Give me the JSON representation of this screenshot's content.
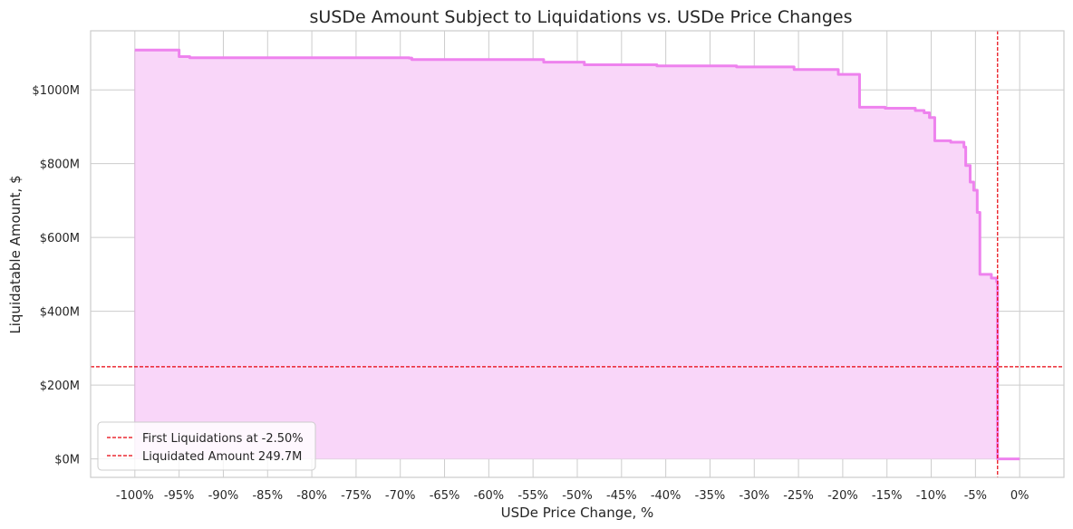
{
  "chart_data": {
    "type": "area",
    "title": "sUSDe Amount Subject to Liquidations vs. USDe Price Changes",
    "xlabel": "USDe Price Change, %",
    "ylabel": "Liquidatable Amount, $",
    "xlim": [
      -105,
      5
    ],
    "ylim": [
      -50,
      1160
    ],
    "x_ticks": [
      -100,
      -95,
      -90,
      -85,
      -80,
      -75,
      -70,
      -65,
      -60,
      -55,
      -50,
      -45,
      -40,
      -35,
      -30,
      -25,
      -20,
      -15,
      -10,
      -5,
      0
    ],
    "x_tick_labels": [
      "-100%",
      "-95%",
      "-90%",
      "-85%",
      "-80%",
      "-75%",
      "-70%",
      "-65%",
      "-60%",
      "-55%",
      "-50%",
      "-45%",
      "-40%",
      "-35%",
      "-30%",
      "-25%",
      "-20%",
      "-15%",
      "-10%",
      "-5%",
      "0%"
    ],
    "y_ticks": [
      0,
      200,
      400,
      600,
      800,
      1000
    ],
    "y_tick_labels": [
      "$0M",
      "$200M",
      "$400M",
      "$600M",
      "$800M",
      "$1000M"
    ],
    "grid": true,
    "legend_placement": "lower-left",
    "series": [
      {
        "color": "#ee82ee",
        "fill_color": "#f9d6f9",
        "x": [
          -100,
          -95,
          -95,
          -93.8,
          -93.8,
          -69,
          -69,
          -68.7,
          -68.7,
          -53.8,
          -53.8,
          -49.2,
          -49.2,
          -41,
          -41,
          -32,
          -32,
          -25.5,
          -25.5,
          -20.5,
          -20.5,
          -18.1,
          -18.1,
          -15.2,
          -15.2,
          -11.8,
          -11.8,
          -10.8,
          -10.8,
          -10.2,
          -10.2,
          -9.6,
          -9.6,
          -7.8,
          -7.8,
          -6.3,
          -6.3,
          -6.1,
          -6.1,
          -5.6,
          -5.6,
          -5.2,
          -5.2,
          -4.8,
          -4.8,
          -4.5,
          -4.5,
          -3.2,
          -3.2,
          -2.6,
          -2.6,
          -2.5,
          -2.5,
          0
        ],
        "y": [
          1108,
          1108,
          1090,
          1090,
          1087,
          1087,
          1086,
          1086,
          1082,
          1082,
          1075,
          1075,
          1068,
          1068,
          1065,
          1065,
          1062,
          1062,
          1055,
          1055,
          1042,
          1042,
          953,
          953,
          950,
          950,
          944,
          944,
          938,
          938,
          925,
          925,
          862,
          862,
          858,
          858,
          845,
          845,
          795,
          795,
          750,
          750,
          728,
          728,
          668,
          668,
          500,
          500,
          490,
          490,
          480,
          480,
          0,
          0
        ]
      }
    ],
    "reference_lines": [
      {
        "orientation": "vertical",
        "value": -2.5,
        "color": "#e8000b",
        "style": "dashed",
        "label": "First Liquidations at -2.50%"
      },
      {
        "orientation": "horizontal",
        "value": 249.7,
        "color": "#e8000b",
        "style": "dashed",
        "label": "Liquidated Amount 249.7M"
      }
    ]
  },
  "colors": {
    "background": "#ffffff",
    "grid": "#cccccc",
    "axes_edge": "#cccccc",
    "text": "#262626"
  }
}
